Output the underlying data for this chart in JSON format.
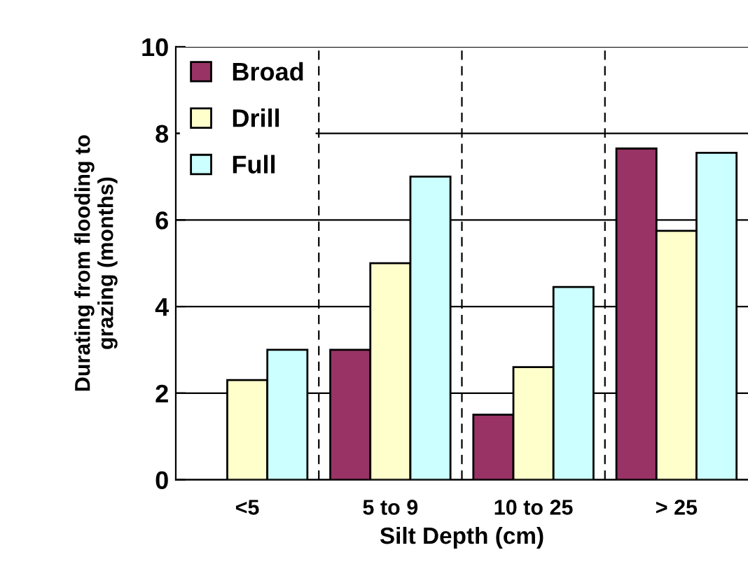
{
  "chart_data": {
    "type": "bar",
    "xlabel": "Silt Depth (cm)",
    "ylabel": "Durating from flooding to\ngrazing (months)",
    "categories": [
      "<5",
      "5 to 9",
      "10 to 25",
      "> 25"
    ],
    "series": [
      {
        "name": "Broad",
        "color": "#993366",
        "values": [
          null,
          3.0,
          1.5,
          7.65
        ]
      },
      {
        "name": "Drill",
        "color": "#ffffcc",
        "values": [
          2.3,
          5.0,
          2.6,
          5.75
        ]
      },
      {
        "name": "Full",
        "color": "#ccffff",
        "values": [
          3.0,
          7.0,
          4.45,
          7.55
        ]
      }
    ],
    "ylim": [
      0,
      10
    ],
    "yticks": [
      0,
      2,
      4,
      6,
      8,
      10
    ],
    "grid": true,
    "legend": "top left"
  }
}
